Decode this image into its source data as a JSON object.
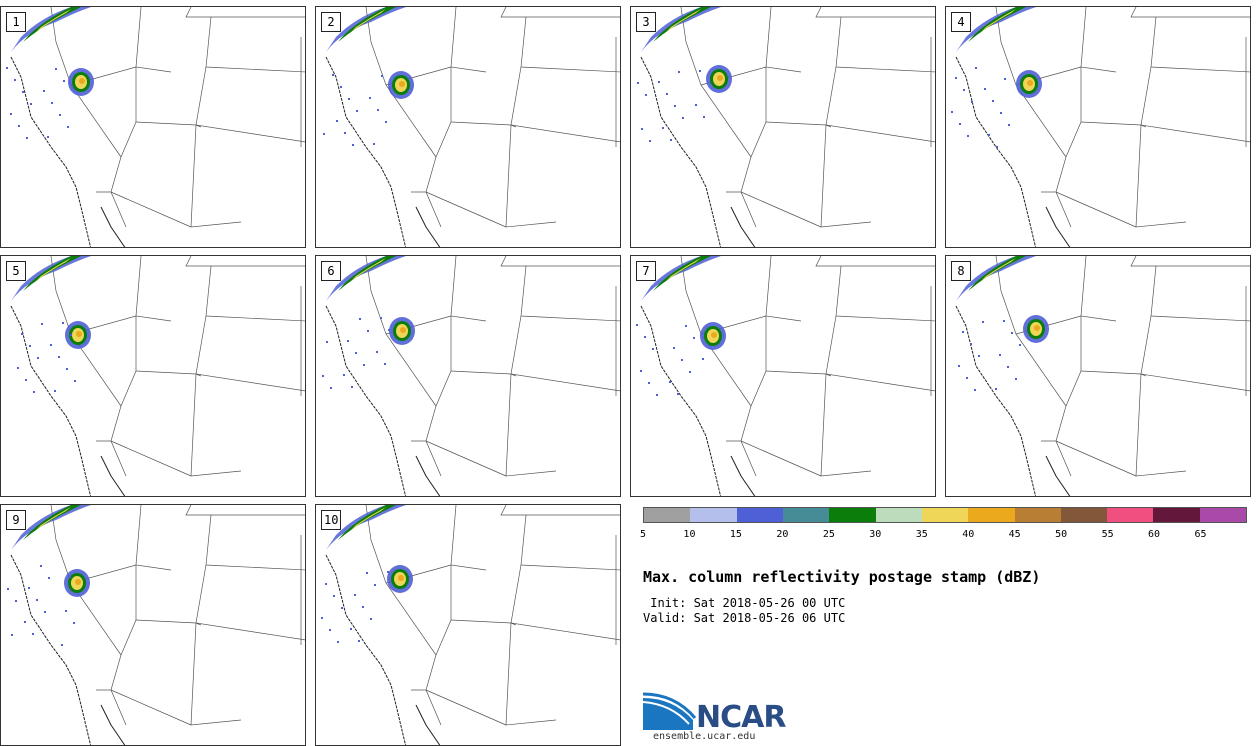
{
  "panels": [
    {
      "label": "1"
    },
    {
      "label": "2"
    },
    {
      "label": "3"
    },
    {
      "label": "4"
    },
    {
      "label": "5"
    },
    {
      "label": "6"
    },
    {
      "label": "7"
    },
    {
      "label": "8"
    },
    {
      "label": "9"
    },
    {
      "label": "10"
    }
  ],
  "colorbar": {
    "colors": [
      "#a0a0a0",
      "#b4bfec",
      "#4f5fd6",
      "#468c96",
      "#0a7d0a",
      "#bcdcbc",
      "#efd659",
      "#eba91e",
      "#b77e34",
      "#82573a",
      "#ef5080",
      "#63173a",
      "#aa4aa8"
    ],
    "ticks": [
      "5",
      "10",
      "15",
      "20",
      "25",
      "30",
      "35",
      "40",
      "45",
      "50",
      "55",
      "60",
      "65"
    ]
  },
  "title": "Max. column reflectivity postage stamp (dBZ)",
  "init_line": " Init: Sat 2018-05-26 00 UTC",
  "valid_line": "Valid: Sat 2018-05-26 06 UTC",
  "logo": {
    "word": "NCAR",
    "url": "ensemble.ucar.edu"
  }
}
